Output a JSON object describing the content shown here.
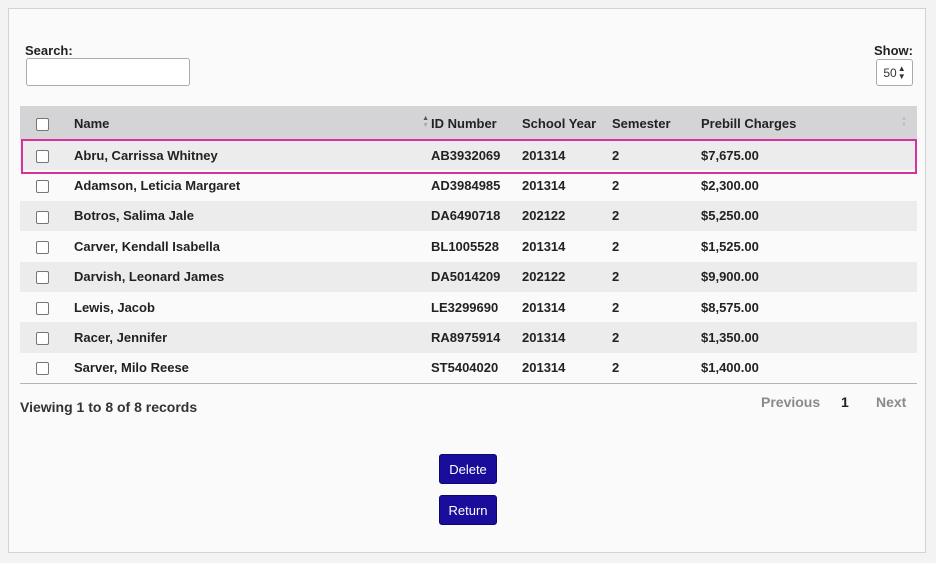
{
  "search": {
    "label": "Search:",
    "value": ""
  },
  "show": {
    "label": "Show:",
    "selected": "50"
  },
  "table": {
    "headers": {
      "name": "Name",
      "id_number": "ID Number",
      "school_year": "School Year",
      "semester": "Semester",
      "prebill_charges": "Prebill Charges"
    },
    "rows": [
      {
        "name": "Abru, Carrissa Whitney",
        "id": "AB3932069",
        "year": "201314",
        "semester": "2",
        "charges": "$7,675.00"
      },
      {
        "name": "Adamson, Leticia Margaret",
        "id": "AD3984985",
        "year": "201314",
        "semester": "2",
        "charges": "$2,300.00"
      },
      {
        "name": "Botros, Salima Jale",
        "id": "DA6490718",
        "year": "202122",
        "semester": "2",
        "charges": "$5,250.00"
      },
      {
        "name": "Carver, Kendall Isabella",
        "id": "BL1005528",
        "year": "201314",
        "semester": "2",
        "charges": "$1,525.00"
      },
      {
        "name": "Darvish, Leonard James",
        "id": "DA5014209",
        "year": "202122",
        "semester": "2",
        "charges": "$9,900.00"
      },
      {
        "name": "Lewis, Jacob",
        "id": "LE3299690",
        "year": "201314",
        "semester": "2",
        "charges": "$8,575.00"
      },
      {
        "name": "Racer, Jennifer",
        "id": "RA8975914",
        "year": "201314",
        "semester": "2",
        "charges": "$1,350.00"
      },
      {
        "name": "Sarver, Milo Reese",
        "id": "ST5404020",
        "year": "201314",
        "semester": "2",
        "charges": "$1,400.00"
      }
    ]
  },
  "footer": {
    "viewing": "Viewing 1 to 8 of 8 records",
    "previous": "Previous",
    "page": "1",
    "next": "Next"
  },
  "buttons": {
    "delete": "Delete",
    "return": "Return"
  },
  "colors": {
    "highlight": "#d6319c",
    "button": "#1a0d9b"
  }
}
